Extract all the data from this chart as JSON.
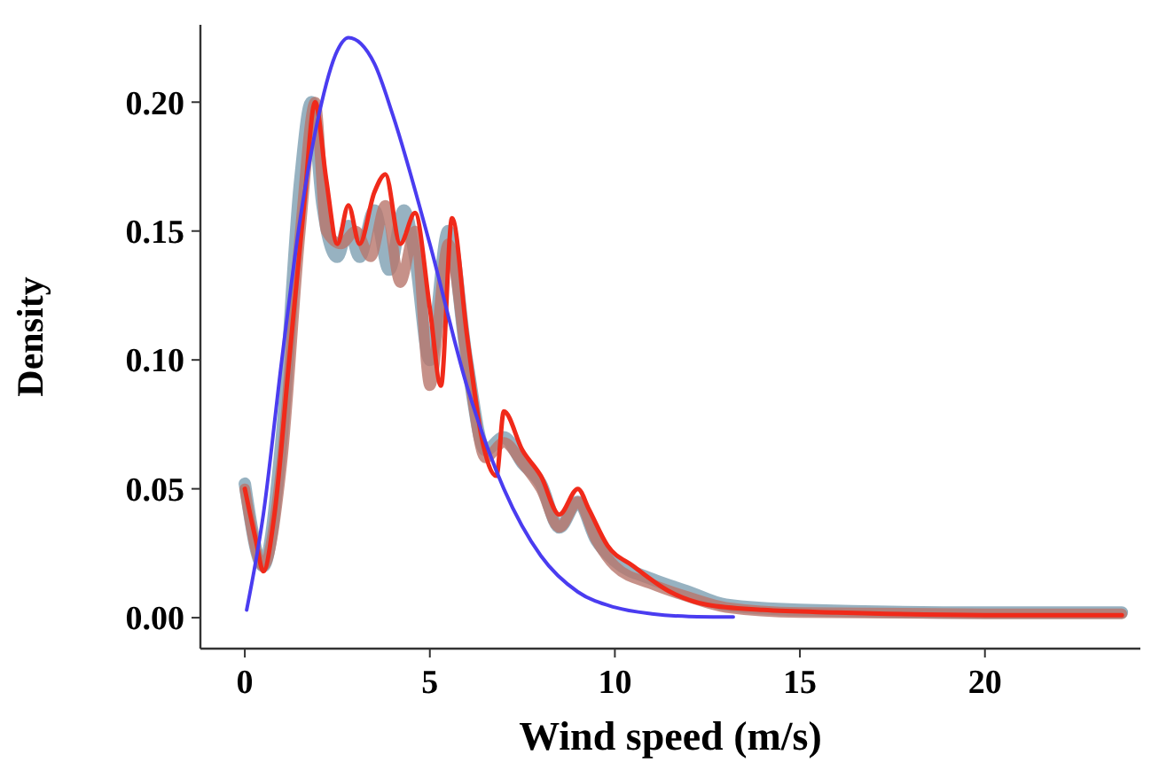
{
  "chart_data": {
    "type": "line",
    "xlabel": "Wind speed (m/s)",
    "ylabel": "Density",
    "xlim": [
      -1.2,
      24.2
    ],
    "ylim": [
      -0.012,
      0.23
    ],
    "xticks": [
      0,
      5,
      10,
      15,
      20
    ],
    "yticks": [
      {
        "value": 0,
        "label": "0.00"
      },
      {
        "value": 0.05,
        "label": "0.05"
      },
      {
        "value": 0.1,
        "label": "0.10"
      },
      {
        "value": 0.15,
        "label": "0.15"
      },
      {
        "value": 0.2,
        "label": "0.20"
      }
    ],
    "grid": false,
    "marker": "none",
    "line_style": "solid",
    "series": [
      {
        "color": "#7d9fb2",
        "x": [
          0,
          0.5,
          1,
          1.5,
          1.8,
          2.1,
          2.5,
          2.8,
          3.1,
          3.5,
          3.9,
          4.3,
          4.6,
          5,
          5.5,
          6,
          6.5,
          7,
          7.5,
          8,
          8.5,
          9,
          9.5,
          10,
          11,
          12,
          13,
          15,
          20,
          23.7
        ],
        "values": [
          0.052,
          0.02,
          0.07,
          0.17,
          0.2,
          0.16,
          0.14,
          0.152,
          0.14,
          0.158,
          0.135,
          0.158,
          0.14,
          0.1,
          0.15,
          0.1,
          0.065,
          0.07,
          0.06,
          0.052,
          0.035,
          0.045,
          0.03,
          0.022,
          0.015,
          0.01,
          0.005,
          0.003,
          0.002,
          0.002
        ]
      },
      {
        "color": "#b8766c",
        "x": [
          0,
          0.5,
          1,
          1.5,
          1.9,
          2.2,
          2.6,
          3,
          3.4,
          3.8,
          4.2,
          4.6,
          5,
          5.5,
          6,
          6.5,
          7,
          7.5,
          8,
          8.5,
          9,
          9.5,
          10,
          11,
          12,
          13,
          15,
          20,
          23.7
        ],
        "values": [
          0.05,
          0.02,
          0.06,
          0.15,
          0.2,
          0.15,
          0.145,
          0.15,
          0.14,
          0.16,
          0.13,
          0.15,
          0.09,
          0.145,
          0.1,
          0.062,
          0.068,
          0.06,
          0.05,
          0.035,
          0.045,
          0.03,
          0.02,
          0.013,
          0.008,
          0.004,
          0.002,
          0.0015,
          0.0015
        ]
      },
      {
        "color": "#f02a1a",
        "x": [
          0,
          0.3,
          0.5,
          0.8,
          1.2,
          1.6,
          1.9,
          2.2,
          2.5,
          2.8,
          3.1,
          3.5,
          3.8,
          4.2,
          4.6,
          5,
          5.3,
          5.6,
          6,
          6.4,
          6.8,
          7,
          7.5,
          8,
          8.5,
          9,
          9.3,
          9.8,
          10.5,
          11.5,
          12.5,
          14,
          16,
          20,
          23.7
        ],
        "values": [
          0.05,
          0.03,
          0.018,
          0.04,
          0.1,
          0.16,
          0.2,
          0.17,
          0.145,
          0.16,
          0.145,
          0.165,
          0.172,
          0.145,
          0.157,
          0.12,
          0.09,
          0.155,
          0.11,
          0.07,
          0.055,
          0.08,
          0.065,
          0.055,
          0.04,
          0.05,
          0.042,
          0.028,
          0.02,
          0.01,
          0.005,
          0.003,
          0.002,
          0.001,
          0.001
        ]
      },
      {
        "color": "#4a3cf0",
        "x": [
          0.05,
          0.5,
          1,
          1.5,
          2,
          2.5,
          2.8,
          3.5,
          4,
          5,
          6,
          7,
          8,
          9,
          10,
          11,
          12,
          13.2
        ],
        "values": [
          0.003,
          0.04,
          0.1,
          0.155,
          0.195,
          0.22,
          0.225,
          0.215,
          0.195,
          0.145,
          0.09,
          0.05,
          0.024,
          0.01,
          0.004,
          0.0015,
          0.0005,
          0.0003
        ]
      }
    ]
  }
}
